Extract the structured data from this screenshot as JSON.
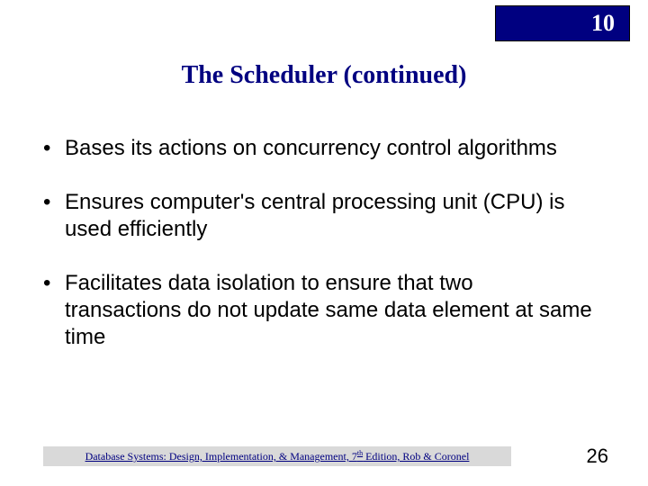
{
  "chapter": {
    "number": "10",
    "badge_bg": "#000080",
    "badge_text_color": "#ffffff"
  },
  "title": {
    "text": "The Scheduler (continued)",
    "color": "#000080",
    "fontsize": 28
  },
  "bullets": [
    {
      "text": "Bases its actions on concurrency control algorithms"
    },
    {
      "text": "Ensures computer's central processing unit (CPU) is used efficiently"
    },
    {
      "text": "Facilitates data isolation to ensure that two transactions do not update same data element at same time"
    }
  ],
  "bullet_style": {
    "marker": "•",
    "fontsize": 24,
    "text_color": "#000000"
  },
  "footer": {
    "prefix": "Database Systems: Design, Implementation, & Management, 7",
    "sup": "th",
    "suffix": " Edition, Rob & Coronel",
    "bg": "#d9d9d9",
    "text_color": "#000080",
    "fontsize": 12
  },
  "page_number": "26",
  "background_color": "#ffffff"
}
